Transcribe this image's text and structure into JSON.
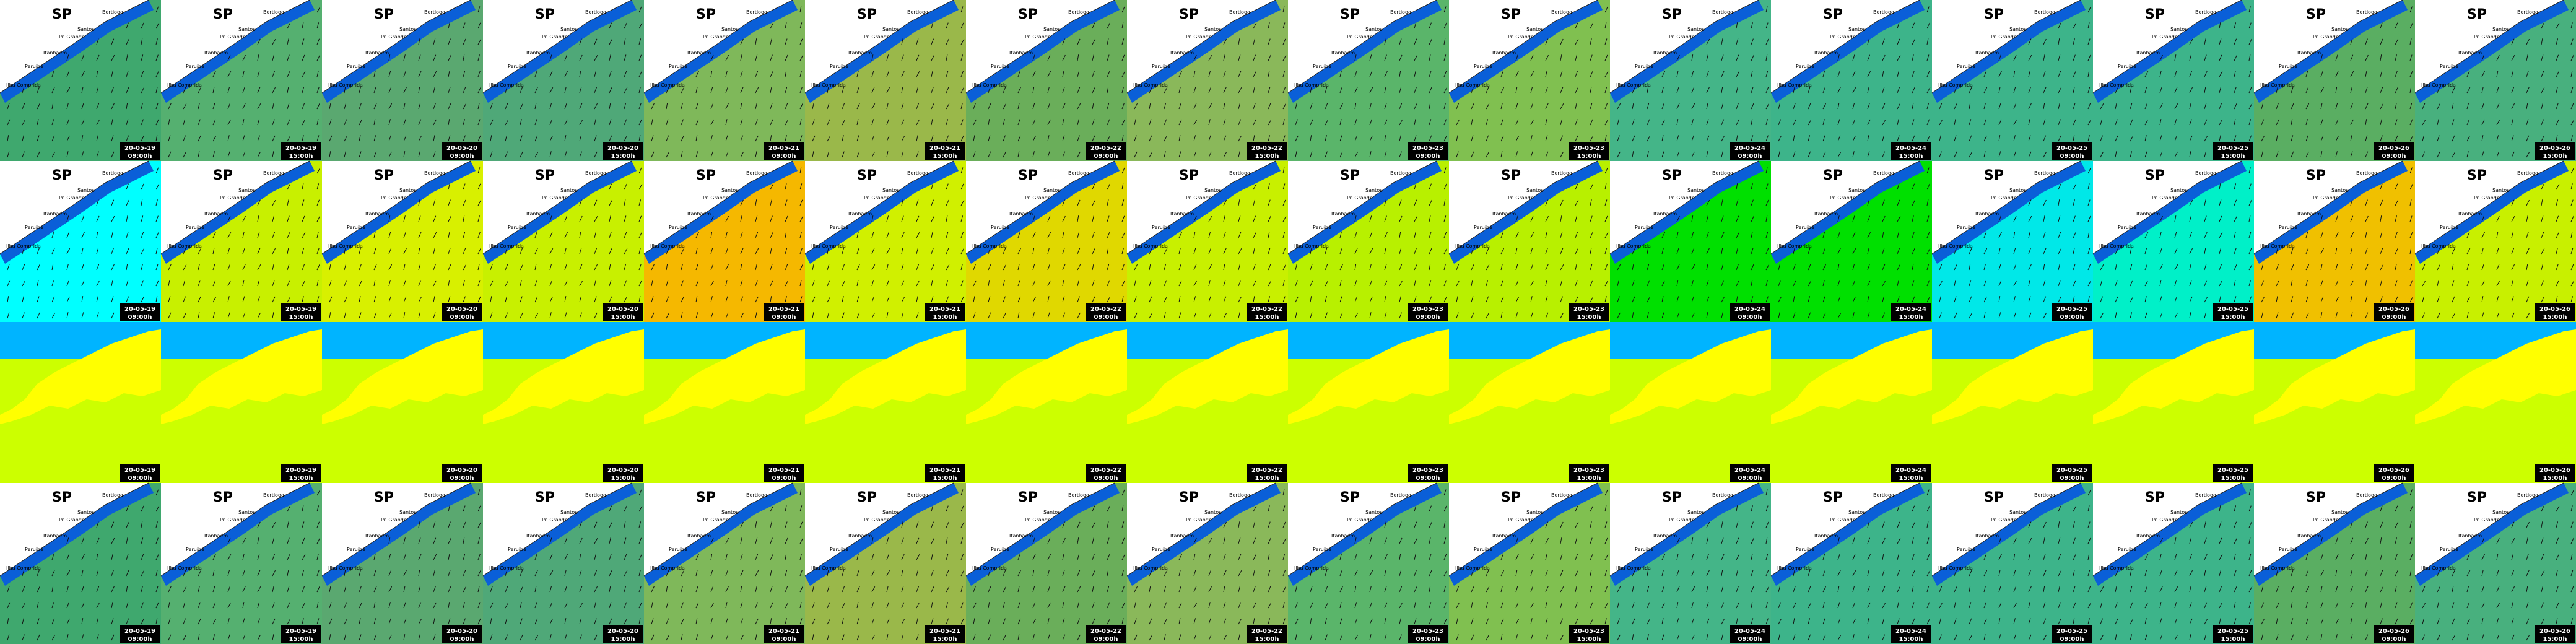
{
  "title": "SP",
  "places": [
    "Bertioga",
    "Santos",
    "Pr. Grande",
    "Itanhaém",
    "Peruíbe",
    "Ilha Comprida"
  ],
  "columns": [
    {
      "date": "20-05-19",
      "time": "09:00h"
    },
    {
      "date": "20-05-19",
      "time": "15:00h"
    },
    {
      "date": "20-05-20",
      "time": "09:00h"
    },
    {
      "date": "20-05-20",
      "time": "15:00h"
    },
    {
      "date": "20-05-21",
      "time": "09:00h"
    },
    {
      "date": "20-05-21",
      "time": "15:00h"
    },
    {
      "date": "20-05-22",
      "time": "09:00h"
    },
    {
      "date": "20-05-22",
      "time": "15:00h"
    },
    {
      "date": "20-05-23",
      "time": "09:00h"
    },
    {
      "date": "20-05-23",
      "time": "15:00h"
    },
    {
      "date": "20-05-24",
      "time": "09:00h"
    },
    {
      "date": "20-05-24",
      "time": "15:00h"
    },
    {
      "date": "20-05-25",
      "time": "09:00h"
    },
    {
      "date": "20-05-25",
      "time": "15:00h"
    },
    {
      "date": "20-05-26",
      "time": "09:00h"
    },
    {
      "date": "20-05-26",
      "time": "15:00h"
    }
  ]
}
